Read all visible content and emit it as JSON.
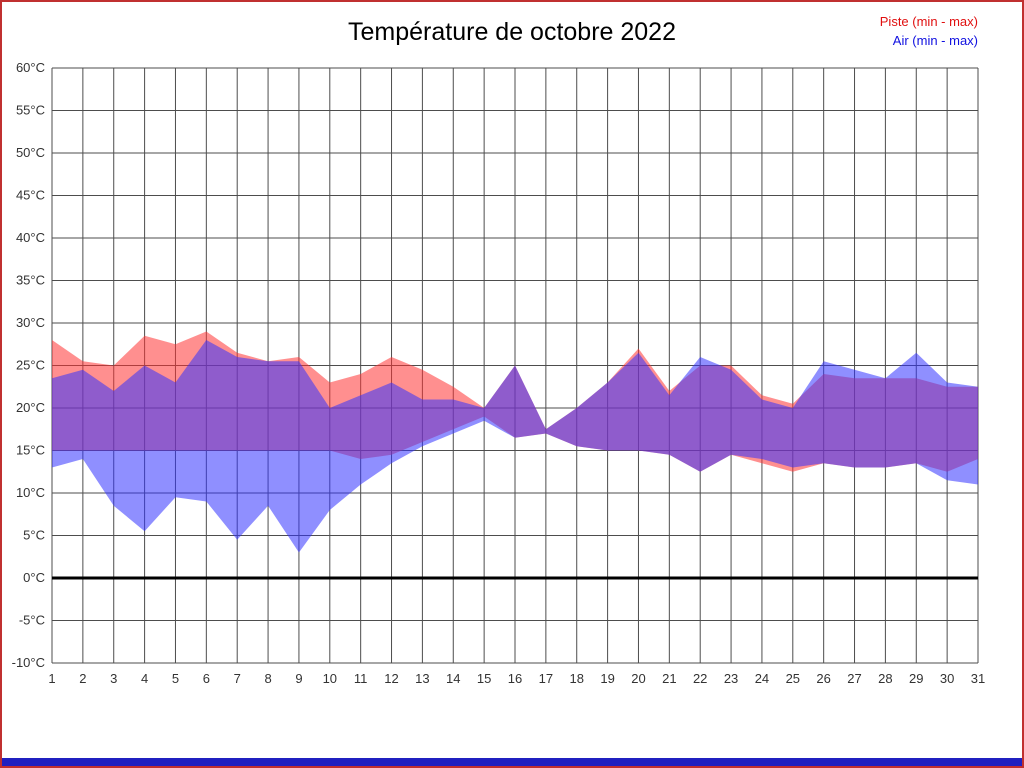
{
  "title": "Température de octobre 2022",
  "legend": {
    "piste": "Piste (min - max)",
    "air": "Air (min - max)"
  },
  "colors": {
    "piste_fill": "#ff3333",
    "air_fill": "#3333ff",
    "piste_text": "#e01010",
    "air_text": "#1010e0",
    "frame": "#c03030",
    "bottom_bar": "#2020c0",
    "grid": "#4d4d4d",
    "tick_text": "#333333",
    "zero_line": "#000000"
  },
  "chart_data": {
    "type": "area",
    "title": "Température de octobre 2022",
    "xlabel": "",
    "ylabel": "",
    "y_unit": "°C",
    "ylim": [
      -10,
      60
    ],
    "y_ticks": [
      60,
      55,
      50,
      45,
      40,
      35,
      30,
      25,
      20,
      15,
      10,
      5,
      0,
      -5,
      -10
    ],
    "x": [
      1,
      2,
      3,
      4,
      5,
      6,
      7,
      8,
      9,
      10,
      11,
      12,
      13,
      14,
      15,
      16,
      17,
      18,
      19,
      20,
      21,
      22,
      23,
      24,
      25,
      26,
      27,
      28,
      29,
      30,
      31
    ],
    "grid": true,
    "zero_line": true,
    "legend_position": "top-right",
    "series": [
      {
        "name": "Piste (min - max)",
        "color": "#ff3333",
        "max": [
          28,
          25.5,
          25,
          28.5,
          27.5,
          29,
          26.5,
          25.5,
          26,
          23,
          24,
          26,
          24.5,
          22.5,
          20,
          25,
          17.5,
          20,
          23,
          27,
          22,
          25,
          25,
          21.5,
          20.5,
          24,
          23.5,
          23.5,
          23.5,
          22.5,
          22.5
        ],
        "min": [
          15,
          15,
          15,
          15,
          15,
          15,
          15,
          15,
          15,
          15,
          14,
          14.5,
          16,
          17.5,
          19,
          16.5,
          17,
          15.5,
          15,
          15,
          14.5,
          12.5,
          14.5,
          13.5,
          12.5,
          13.5,
          13,
          13,
          13.5,
          12.5,
          14
        ]
      },
      {
        "name": "Air (min - max)",
        "color": "#3333ff",
        "max": [
          23.5,
          24.5,
          22,
          25,
          23,
          28,
          26,
          25.5,
          25.5,
          20,
          21.5,
          23,
          21,
          21,
          20,
          25,
          17.5,
          20,
          23,
          26.5,
          21.5,
          26,
          24.5,
          21,
          20,
          25.5,
          24.5,
          23.5,
          26.5,
          23,
          22.5
        ],
        "min": [
          13,
          14,
          8.5,
          5.5,
          9.5,
          9,
          4.5,
          8.5,
          3,
          8,
          11,
          13.5,
          15.5,
          17,
          18.5,
          16.5,
          17,
          15.5,
          15,
          15,
          14.5,
          12.5,
          14.5,
          14,
          13,
          13.5,
          13,
          13,
          13.5,
          11.5,
          11
        ]
      }
    ]
  }
}
